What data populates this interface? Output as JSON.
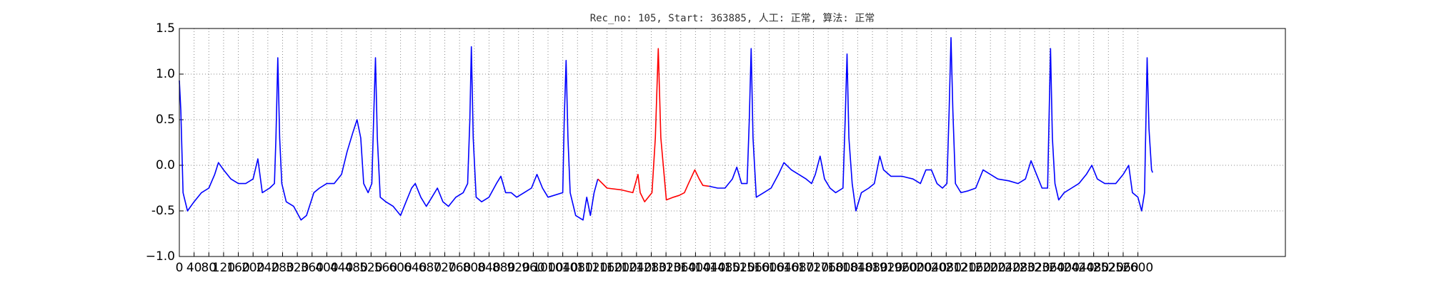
{
  "chart_data": {
    "type": "line",
    "title": "Rec_no: 105, Start: 363885, 人工: 正常, 算法: 正常",
    "xlim": [
      0,
      3000
    ],
    "ylim": [
      -1.0,
      1.5
    ],
    "xticks": [
      0,
      40,
      80,
      120,
      160,
      200,
      240,
      280,
      320,
      360,
      400,
      440,
      480,
      520,
      560,
      600,
      640,
      680,
      720,
      760,
      800,
      840,
      880,
      920,
      960,
      1000,
      1040,
      1080,
      1120,
      1160,
      1200,
      1240,
      1280,
      1320,
      1360,
      1400,
      1440,
      1480,
      1520,
      1560,
      1600,
      1640,
      1680,
      1720,
      1760,
      1800,
      1840,
      1880,
      1920,
      1960,
      2000,
      2040,
      2080,
      2120,
      2160,
      2200,
      2240,
      2280,
      2320,
      2360,
      2400,
      2440,
      2480,
      2520,
      2560,
      2600
    ],
    "yticks": [
      {
        "value": -1.0,
        "label": "−1.0"
      },
      -0.5,
      {
        "value": 0.0,
        "label": "0.0"
      },
      0.5,
      {
        "value": 1.0,
        "label": "1.0"
      },
      1.5
    ],
    "grid": true,
    "series": [
      {
        "color": "#0000ff",
        "x": [
          0,
          4,
          10,
          22,
          40,
          60,
          80,
          96,
          106,
          120,
          140,
          160,
          180,
          200,
          213,
          225,
          245,
          258,
          262,
          267,
          272,
          278,
          290,
          310,
          330,
          345,
          365,
          380,
          400,
          420,
          440,
          455,
          470,
          482,
          492,
          500,
          512,
          522,
          527,
          532,
          537,
          545,
          560,
          580,
          600,
          615,
          630,
          640,
          655,
          670,
          685,
          700,
          715,
          730,
          750,
          770,
          782,
          788,
          792,
          797,
          805,
          820,
          840,
          860,
          872,
          885,
          900,
          915,
          935,
          955,
          970,
          985,
          1000,
          1040,
          1044,
          1049,
          1054,
          1060,
          1075,
          1095,
          1105,
          1115,
          1125,
          1135,
          null,
          1437,
          1460,
          1480,
          1500,
          1512,
          1525,
          1540,
          1546,
          1551,
          1556,
          1565,
          1585,
          1605,
          1625,
          1640,
          1660,
          1680,
          1700,
          1715,
          1725,
          1738,
          1750,
          1765,
          1780,
          1800,
          1806,
          1811,
          1816,
          1825,
          1835,
          1850,
          1870,
          1885,
          1900,
          1910,
          1930,
          1960,
          1990,
          2010,
          2025,
          2040,
          2055,
          2070,
          2082,
          2088,
          2093,
          2098,
          2105,
          2120,
          2140,
          2160,
          2180,
          2200,
          2220,
          2250,
          2275,
          2295,
          2310,
          2325,
          2340,
          2355,
          2359,
          2363,
          2368,
          2375,
          2385,
          2400,
          2420,
          2440,
          2460,
          2475,
          2490,
          2510,
          2540,
          2560,
          2575,
          2585,
          2600,
          2610,
          2618,
          2625,
          2630,
          2637,
          2640
        ],
        "values": [
          0.93,
          0.6,
          -0.3,
          -0.5,
          -0.4,
          -0.3,
          -0.25,
          -0.1,
          0.03,
          -0.05,
          -0.15,
          -0.2,
          -0.2,
          -0.15,
          0.07,
          -0.3,
          -0.25,
          -0.2,
          0.3,
          1.18,
          0.3,
          -0.2,
          -0.4,
          -0.45,
          -0.6,
          -0.55,
          -0.3,
          -0.25,
          -0.2,
          -0.2,
          -0.1,
          0.15,
          0.35,
          0.5,
          0.3,
          -0.2,
          -0.3,
          -0.2,
          0.5,
          1.18,
          0.3,
          -0.35,
          -0.4,
          -0.45,
          -0.55,
          -0.4,
          -0.25,
          -0.2,
          -0.35,
          -0.45,
          -0.35,
          -0.25,
          -0.4,
          -0.45,
          -0.35,
          -0.3,
          -0.2,
          0.5,
          1.3,
          0.3,
          -0.35,
          -0.4,
          -0.35,
          -0.2,
          -0.12,
          -0.3,
          -0.3,
          -0.35,
          -0.3,
          -0.25,
          -0.1,
          -0.25,
          -0.35,
          -0.3,
          0.5,
          1.15,
          0.3,
          -0.3,
          -0.55,
          -0.6,
          -0.35,
          -0.55,
          -0.3,
          -0.15,
          null,
          -0.23,
          -0.25,
          -0.25,
          -0.15,
          -0.02,
          -0.2,
          -0.2,
          0.5,
          1.28,
          0.3,
          -0.35,
          -0.3,
          -0.25,
          -0.1,
          0.03,
          -0.05,
          -0.1,
          -0.15,
          -0.2,
          -0.1,
          0.1,
          -0.15,
          -0.25,
          -0.3,
          -0.25,
          0.5,
          1.22,
          0.3,
          -0.2,
          -0.5,
          -0.3,
          -0.25,
          -0.2,
          0.1,
          -0.05,
          -0.12,
          -0.12,
          -0.15,
          -0.2,
          -0.05,
          -0.05,
          -0.2,
          -0.25,
          -0.2,
          0.6,
          1.4,
          0.6,
          -0.2,
          -0.3,
          -0.28,
          -0.25,
          -0.05,
          -0.1,
          -0.15,
          -0.17,
          -0.2,
          -0.15,
          0.05,
          -0.1,
          -0.25,
          -0.25,
          0.5,
          1.28,
          0.3,
          -0.2,
          -0.38,
          -0.3,
          -0.25,
          -0.2,
          -0.1,
          0.0,
          -0.15,
          -0.2,
          -0.2,
          -0.1,
          0.0,
          -0.3,
          -0.35,
          -0.5,
          -0.3,
          1.18,
          0.4,
          -0.05,
          -0.08
        ]
      },
      {
        "color": "#ff0000",
        "x": [
          1135,
          1160,
          1200,
          1230,
          1244,
          1250,
          1262,
          1282,
          1291,
          1299,
          1306,
          1321,
          1340,
          1356,
          1370,
          1381,
          1398,
          1410,
          1420,
          1437
        ],
        "values": [
          -0.15,
          -0.25,
          -0.27,
          -0.3,
          -0.1,
          -0.3,
          -0.4,
          -0.3,
          0.3,
          1.28,
          0.3,
          -0.38,
          -0.35,
          -0.33,
          -0.3,
          -0.2,
          -0.05,
          -0.15,
          -0.22,
          -0.23
        ]
      }
    ]
  }
}
